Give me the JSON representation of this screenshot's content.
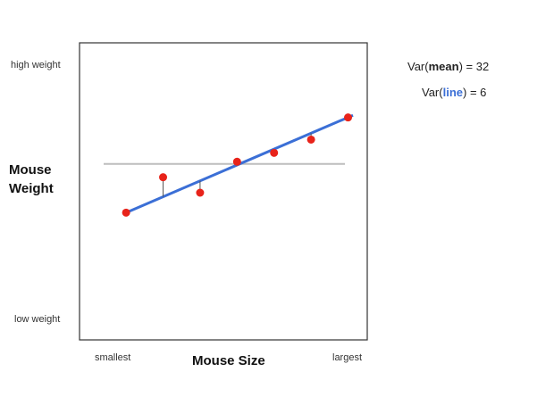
{
  "chart_data": {
    "type": "scatter",
    "xlabel": "Mouse Size",
    "ylabel_lines": [
      "Mouse",
      "Weight"
    ],
    "x_tick_labels": {
      "min": "smallest",
      "max": "largest"
    },
    "y_tick_labels": {
      "min": "low weight",
      "max": "high weight"
    },
    "xlim": [
      0,
      10
    ],
    "ylim": [
      0,
      10
    ],
    "points": [
      {
        "x": 1.2,
        "y": 4.1
      },
      {
        "x": 2.7,
        "y": 5.7
      },
      {
        "x": 4.2,
        "y": 5.0
      },
      {
        "x": 5.7,
        "y": 6.4
      },
      {
        "x": 7.2,
        "y": 6.8
      },
      {
        "x": 8.7,
        "y": 7.4
      },
      {
        "x": 10.2,
        "y": 8.4
      }
    ],
    "mean_line": {
      "y": 6.3
    },
    "fit_line": {
      "x1": 1.2,
      "y1": 4.1,
      "x2": 10.4,
      "y2": 8.5
    },
    "colors": {
      "points": "#e8231a",
      "fit": "#3b6fd6",
      "mean": "#bdbdbd",
      "residual": "#555555",
      "frame": "#333333"
    }
  },
  "annotations": {
    "var_mean": {
      "prefix": "Var(",
      "word": "mean",
      "suffix": ") = 32"
    },
    "var_line": {
      "prefix": "Var(",
      "word": "line",
      "suffix": ") = 6"
    }
  }
}
